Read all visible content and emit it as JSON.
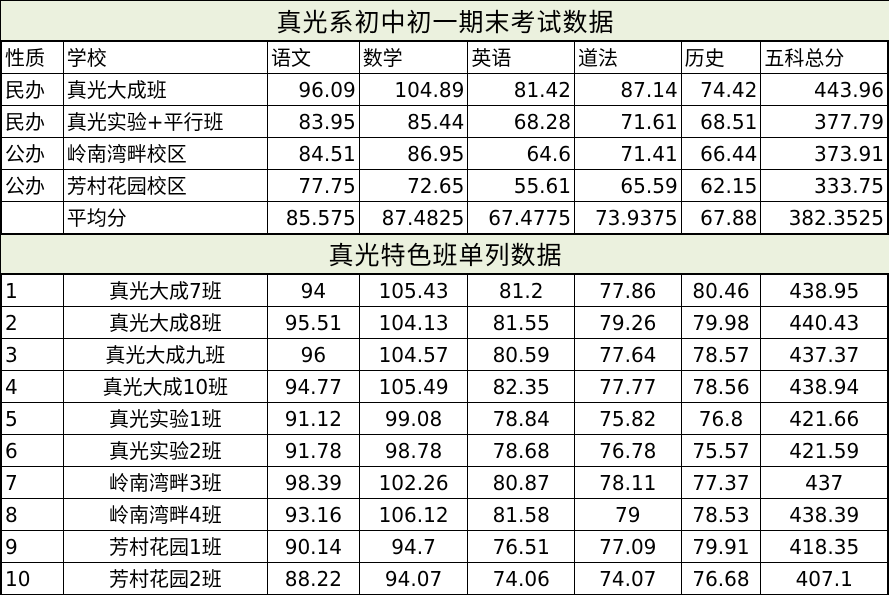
{
  "title1": "真光系初中初一期末考试数据",
  "header": [
    "性质",
    "学校",
    "语文",
    "数学",
    "英语",
    "道法",
    "历史",
    "五科总分"
  ],
  "schools": [
    [
      "民办",
      "真光大成班",
      "96.09",
      "104.89",
      "81.42",
      "87.14",
      "74.42",
      "443.96"
    ],
    [
      "民办",
      "真光实验+平行班",
      "83.95",
      "85.44",
      "68.28",
      "71.61",
      "68.51",
      "377.79"
    ],
    [
      "公办",
      "岭南湾畔校区",
      "84.51",
      "86.95",
      "64.6",
      "71.41",
      "66.44",
      "373.91"
    ],
    [
      "公办",
      "芳村花园校区",
      "77.75",
      "72.65",
      "55.61",
      "65.59",
      "62.15",
      "333.75"
    ]
  ],
  "average": [
    "",
    "平均分",
    "85.575",
    "87.4825",
    "67.4775",
    "73.9375",
    "67.88",
    "382.3525"
  ],
  "title2": "真光特色班单列数据",
  "classes": [
    [
      "1",
      "真光大成7班",
      "94",
      "105.43",
      "81.2",
      "77.86",
      "80.46",
      "438.95"
    ],
    [
      "2",
      "真光大成8班",
      "95.51",
      "104.13",
      "81.55",
      "79.26",
      "79.98",
      "440.43"
    ],
    [
      "3",
      "真光大成九班",
      "96",
      "104.57",
      "80.59",
      "77.64",
      "78.57",
      "437.37"
    ],
    [
      "4",
      "真光大成10班",
      "94.77",
      "105.49",
      "82.35",
      "77.77",
      "78.56",
      "438.94"
    ],
    [
      "5",
      "真光实验1班",
      "91.12",
      "99.08",
      "78.84",
      "75.82",
      "76.8",
      "421.66"
    ],
    [
      "6",
      "真光实验2班",
      "91.78",
      "98.78",
      "78.68",
      "76.78",
      "75.57",
      "421.59"
    ],
    [
      "7",
      "岭南湾畔3班",
      "98.39",
      "102.26",
      "80.87",
      "78.11",
      "77.37",
      "437"
    ],
    [
      "8",
      "岭南湾畔4班",
      "93.16",
      "106.12",
      "81.58",
      "79",
      "78.53",
      "438.39"
    ],
    [
      "9",
      "芳村花园1班",
      "90.14",
      "94.7",
      "76.51",
      "77.09",
      "79.91",
      "418.35"
    ],
    [
      "10",
      "芳村花园2班",
      "88.22",
      "94.07",
      "74.06",
      "74.07",
      "76.68",
      "407.1"
    ]
  ]
}
